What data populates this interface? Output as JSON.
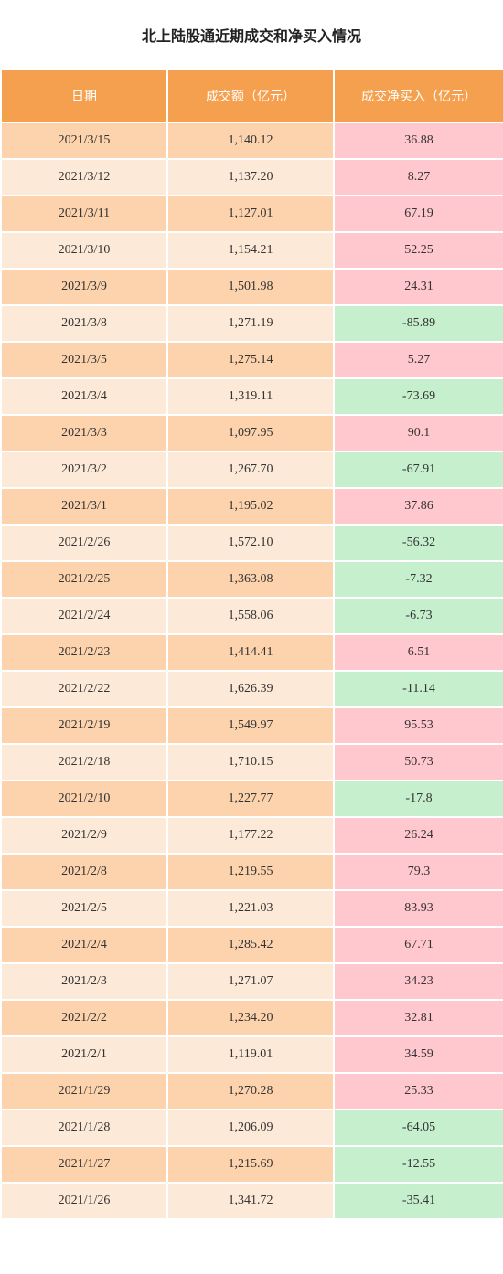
{
  "title": "北上陆股通近期成交和净买入情况",
  "columns": {
    "date": "日期",
    "amount": "成交额（亿元）",
    "net": "成交净买入（亿元）"
  },
  "colors": {
    "header": "#f5a04f",
    "row_odd": "#fcd3ad",
    "row_even": "#fde9d8",
    "positive": "#ffc7ce",
    "negative": "#c6efce"
  },
  "rows": [
    {
      "date": "2021/3/15",
      "amount": "1,140.12",
      "net": "36.88"
    },
    {
      "date": "2021/3/12",
      "amount": "1,137.20",
      "net": "8.27"
    },
    {
      "date": "2021/3/11",
      "amount": "1,127.01",
      "net": "67.19"
    },
    {
      "date": "2021/3/10",
      "amount": "1,154.21",
      "net": "52.25"
    },
    {
      "date": "2021/3/9",
      "amount": "1,501.98",
      "net": "24.31"
    },
    {
      "date": "2021/3/8",
      "amount": "1,271.19",
      "net": "-85.89"
    },
    {
      "date": "2021/3/5",
      "amount": "1,275.14",
      "net": "5.27"
    },
    {
      "date": "2021/3/4",
      "amount": "1,319.11",
      "net": "-73.69"
    },
    {
      "date": "2021/3/3",
      "amount": "1,097.95",
      "net": "90.1"
    },
    {
      "date": "2021/3/2",
      "amount": "1,267.70",
      "net": "-67.91"
    },
    {
      "date": "2021/3/1",
      "amount": "1,195.02",
      "net": "37.86"
    },
    {
      "date": "2021/2/26",
      "amount": "1,572.10",
      "net": "-56.32"
    },
    {
      "date": "2021/2/25",
      "amount": "1,363.08",
      "net": "-7.32"
    },
    {
      "date": "2021/2/24",
      "amount": "1,558.06",
      "net": "-6.73"
    },
    {
      "date": "2021/2/23",
      "amount": "1,414.41",
      "net": "6.51"
    },
    {
      "date": "2021/2/22",
      "amount": "1,626.39",
      "net": "-11.14"
    },
    {
      "date": "2021/2/19",
      "amount": "1,549.97",
      "net": "95.53"
    },
    {
      "date": "2021/2/18",
      "amount": "1,710.15",
      "net": "50.73"
    },
    {
      "date": "2021/2/10",
      "amount": "1,227.77",
      "net": "-17.8"
    },
    {
      "date": "2021/2/9",
      "amount": "1,177.22",
      "net": "26.24"
    },
    {
      "date": "2021/2/8",
      "amount": "1,219.55",
      "net": "79.3"
    },
    {
      "date": "2021/2/5",
      "amount": "1,221.03",
      "net": "83.93"
    },
    {
      "date": "2021/2/4",
      "amount": "1,285.42",
      "net": "67.71"
    },
    {
      "date": "2021/2/3",
      "amount": "1,271.07",
      "net": "34.23"
    },
    {
      "date": "2021/2/2",
      "amount": "1,234.20",
      "net": "32.81"
    },
    {
      "date": "2021/2/1",
      "amount": "1,119.01",
      "net": "34.59"
    },
    {
      "date": "2021/1/29",
      "amount": "1,270.28",
      "net": "25.33"
    },
    {
      "date": "2021/1/28",
      "amount": "1,206.09",
      "net": "-64.05"
    },
    {
      "date": "2021/1/27",
      "amount": "1,215.69",
      "net": "-12.55"
    },
    {
      "date": "2021/1/26",
      "amount": "1,341.72",
      "net": "-35.41"
    }
  ]
}
